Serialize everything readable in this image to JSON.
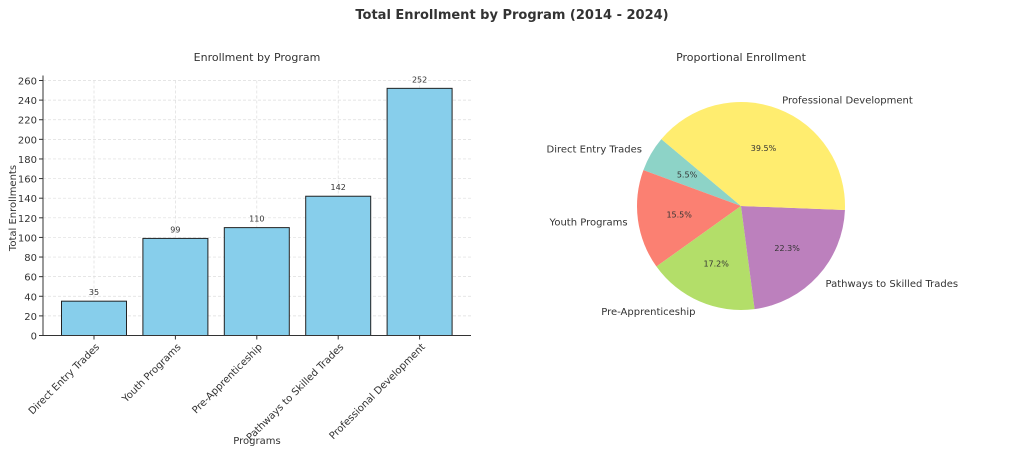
{
  "title": "Total Enrollment by Program (2014 - 2024)",
  "chart_data": [
    {
      "type": "bar",
      "title": "Enrollment by Program",
      "xlabel": "Programs",
      "ylabel": "Total Enrollments",
      "categories": [
        "Direct Entry Trades",
        "Youth Programs",
        "Pre-Apprenticeship",
        "Pathways to Skilled Trades",
        "Professional Development"
      ],
      "values": [
        35,
        99,
        110,
        142,
        252
      ],
      "data_labels": [
        "35",
        "99",
        "110",
        "142",
        "252"
      ],
      "ylim": [
        0,
        260
      ],
      "yticks": [
        0,
        20,
        40,
        60,
        80,
        100,
        120,
        140,
        160,
        180,
        200,
        220,
        240,
        260
      ],
      "grid": true,
      "bar_color": "#87ceeb"
    },
    {
      "type": "pie",
      "title": "Proportional Enrollment",
      "labels": [
        "Direct Entry Trades",
        "Youth Programs",
        "Pre-Apprenticeship",
        "Pathways to Skilled Trades",
        "Professional Development"
      ],
      "values": [
        5.5,
        15.5,
        17.2,
        22.3,
        39.5
      ],
      "pct_labels": [
        "5.5%",
        "15.5%",
        "17.2%",
        "22.3%",
        "39.5%"
      ],
      "colors": [
        "#8dd3c7",
        "#fb8072",
        "#b3de69",
        "#bc80bd",
        "#ffed6f"
      ],
      "start_angle": 140
    }
  ]
}
